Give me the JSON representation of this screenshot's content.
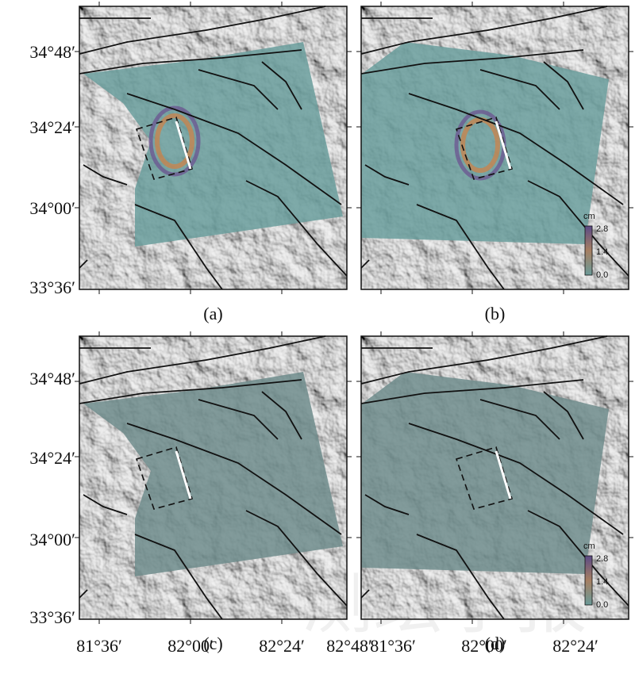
{
  "panels": [
    {
      "label": "(a)"
    },
    {
      "label": "(b)",
      "colorbar": {
        "unit": "cm",
        "ticks": [
          "2.8",
          "1.4",
          "0.0"
        ]
      }
    },
    {
      "label": "(c)"
    },
    {
      "label": "(d)",
      "colorbar": {
        "unit": "cm",
        "ticks": [
          "2.8",
          "1.4",
          "0.0"
        ]
      }
    }
  ],
  "y_axis_labels": [
    "34°48′",
    "34°24′",
    "34°00′",
    "33°36′"
  ],
  "x_axis_labels_left": [
    "81°36′",
    "82°00′",
    "82°24′",
    "82°48′"
  ],
  "x_axis_labels_right": [
    "81°36′",
    "82°00′",
    "82°24′"
  ],
  "watermark": "测绘学报"
}
